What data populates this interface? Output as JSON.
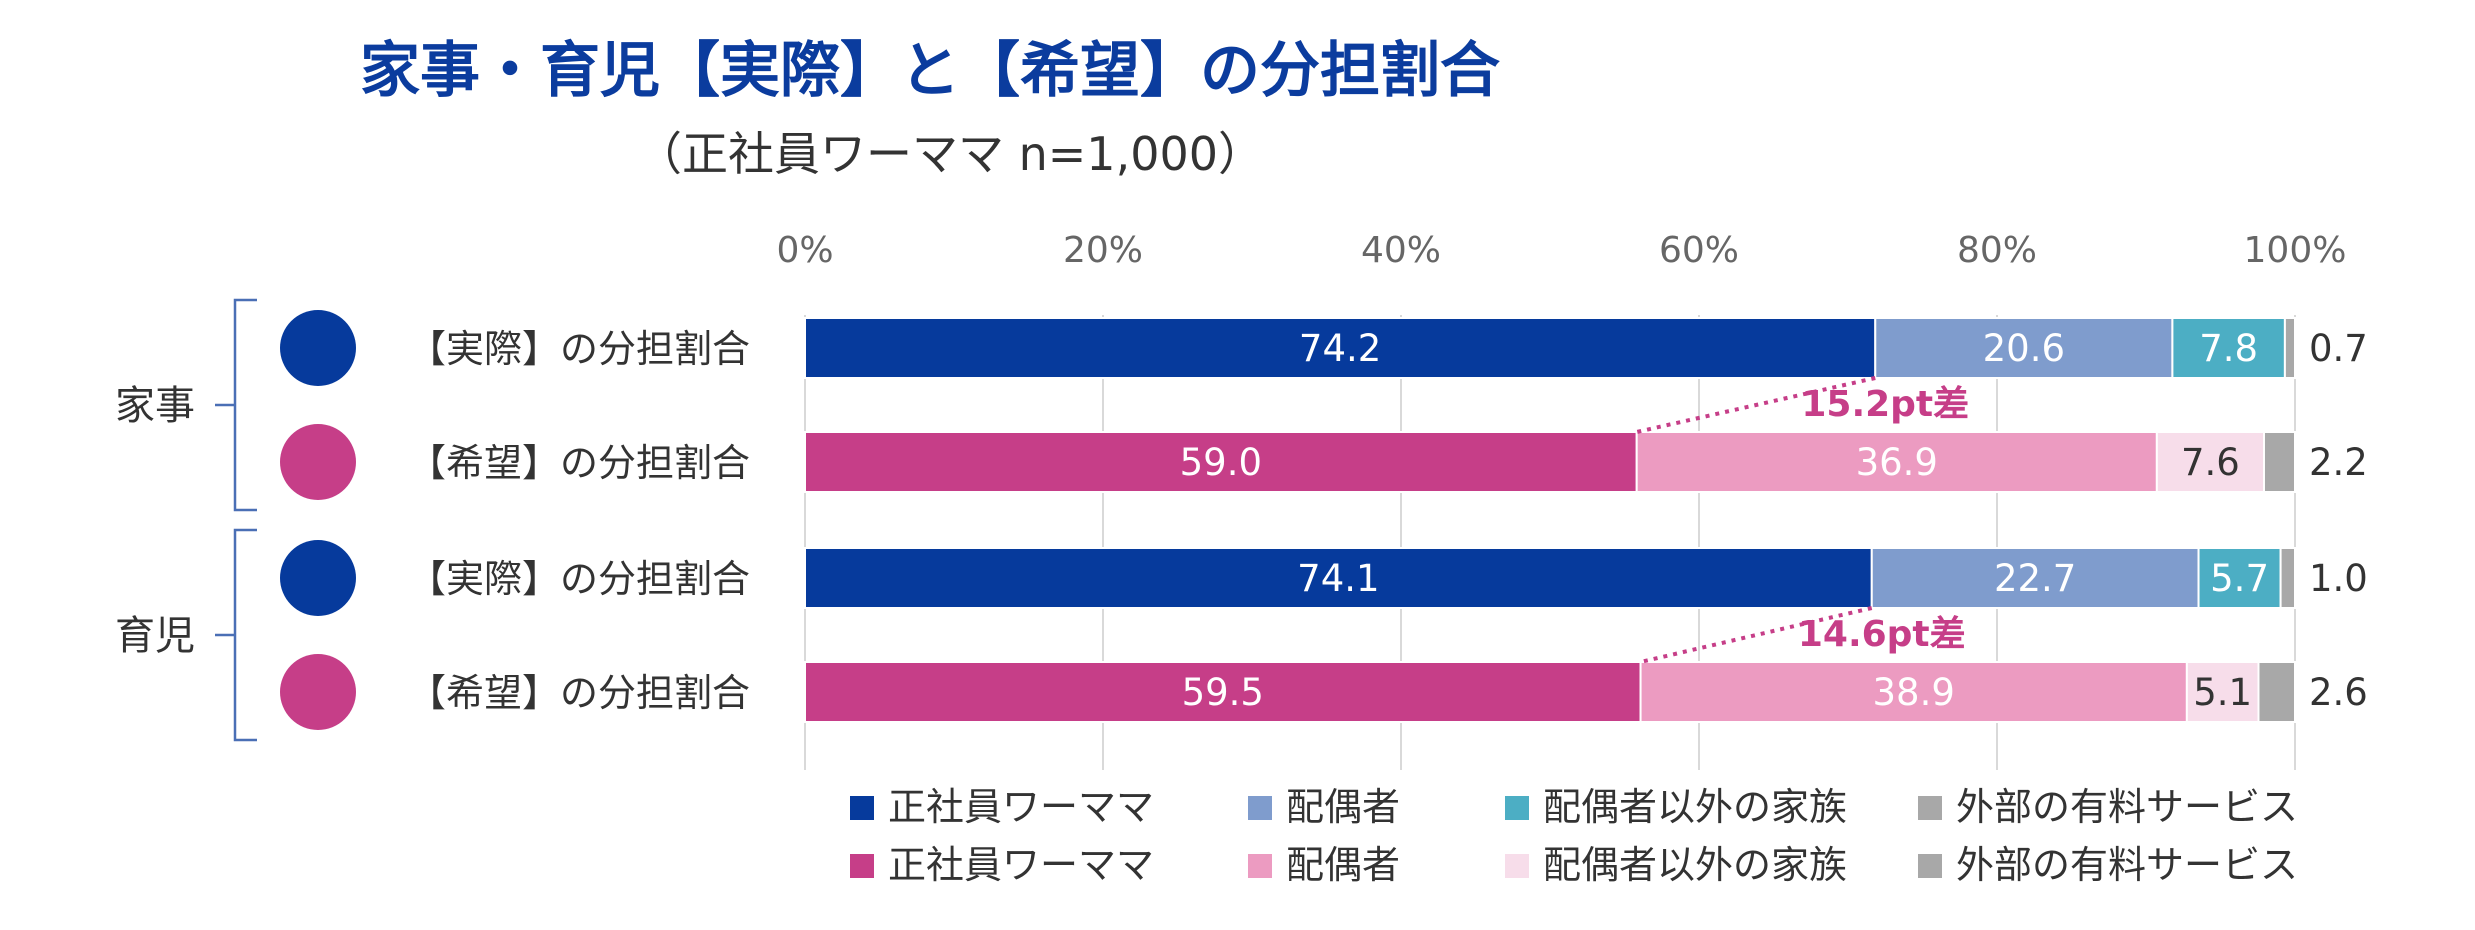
{
  "title": "家事・育児【実際】と【希望】の分担割合",
  "subtitle": "（正社員ワーママ n=1,000）",
  "colors": {
    "actual": [
      "#063A9C",
      "#7F9CCD",
      "#4CAEC4",
      "#A8A8A8"
    ],
    "wish": [
      "#C63E88",
      "#EC9BC1",
      "#F7DDEA",
      "#A8A8A8"
    ],
    "gap": "#C63E88",
    "axis_text": "#666666"
  },
  "chart_data": {
    "type": "bar",
    "orientation": "horizontal",
    "stacked": "percent",
    "xlim": [
      0,
      100
    ],
    "x_ticks": [
      "0%",
      "20%",
      "40%",
      "60%",
      "80%",
      "100%"
    ],
    "grid": true,
    "legend_position": "bottom",
    "groups": [
      {
        "name": "家事",
        "rows": [
          {
            "label": "【実際】の分担割合",
            "kind": "actual",
            "values": [
              74.2,
              20.6,
              7.8,
              0.7
            ]
          },
          {
            "label": "【希望】の分担割合",
            "kind": "wish",
            "values": [
              59.0,
              36.9,
              7.6,
              2.2
            ]
          }
        ],
        "gap_label": "15.2pt差"
      },
      {
        "name": "育児",
        "rows": [
          {
            "label": "【実際】の分担割合",
            "kind": "actual",
            "values": [
              74.1,
              22.7,
              5.7,
              1.0
            ]
          },
          {
            "label": "【希望】の分担割合",
            "kind": "wish",
            "values": [
              59.5,
              38.9,
              5.1,
              2.6
            ]
          }
        ],
        "gap_label": "14.6pt差"
      }
    ],
    "value_labels": {
      "row0": [
        "74.2",
        "20.6",
        "7.8",
        "0.7"
      ],
      "row1": [
        "59.0",
        "36.9",
        "7.6",
        "2.2"
      ],
      "row2": [
        "74.1",
        "22.7",
        "5.7",
        "1.0"
      ],
      "row3": [
        "59.5",
        "38.9",
        "5.1",
        "2.6"
      ]
    },
    "legend": {
      "actual": [
        "正社員ワーママ",
        "配偶者",
        "配偶者以外の家族",
        "外部の有料サービス"
      ],
      "wish": [
        "正社員ワーママ",
        "配偶者",
        "配偶者以外の家族",
        "外部の有料サービス"
      ]
    }
  }
}
